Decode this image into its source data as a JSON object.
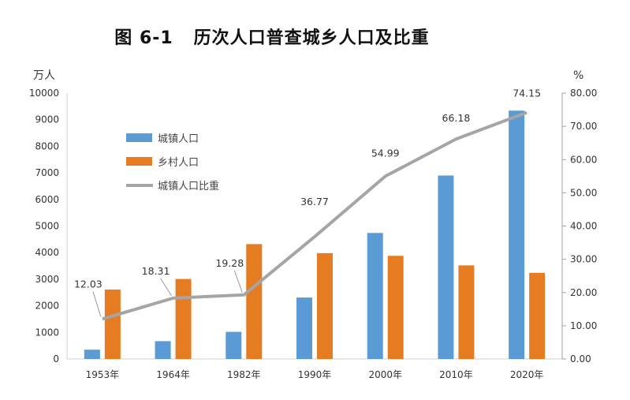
{
  "chart_data": {
    "type": "bar",
    "title": "图 6-1   历次人口普查城乡人口及比重",
    "categories": [
      "1953年",
      "1964年",
      "1982年",
      "1990年",
      "2000年",
      "2010年",
      "2020年"
    ],
    "series": [
      {
        "name": "城镇人口",
        "type": "bar",
        "axis": "left",
        "color": "#5B9BD5",
        "values": [
          350,
          670,
          1020,
          2310,
          4740,
          6900,
          9340
        ]
      },
      {
        "name": "乡村人口",
        "type": "bar",
        "axis": "left",
        "color": "#E67C22",
        "values": [
          2610,
          3010,
          4320,
          3980,
          3880,
          3520,
          3240
        ]
      },
      {
        "name": "城镇人口比重",
        "type": "line",
        "axis": "right",
        "color": "#A5A5A5",
        "values": [
          12.03,
          18.31,
          19.28,
          36.77,
          54.99,
          66.18,
          74.15
        ],
        "data_labels": [
          "12.03",
          "18.31",
          "19.28",
          "36.77",
          "54.99",
          "66.18",
          "74.15"
        ]
      }
    ],
    "ylabel": "万人",
    "ylim": [
      0,
      10000
    ],
    "yticks": [
      "0",
      "1000",
      "2000",
      "3000",
      "4000",
      "5000",
      "6000",
      "7000",
      "8000",
      "9000",
      "10000"
    ],
    "y2label": "%",
    "y2lim": [
      0,
      80
    ],
    "y2ticks": [
      "0.00",
      "10.00",
      "20.00",
      "30.00",
      "40.00",
      "50.00",
      "60.00",
      "70.00",
      "80.00"
    ],
    "grid": false,
    "legend": "top-left"
  }
}
